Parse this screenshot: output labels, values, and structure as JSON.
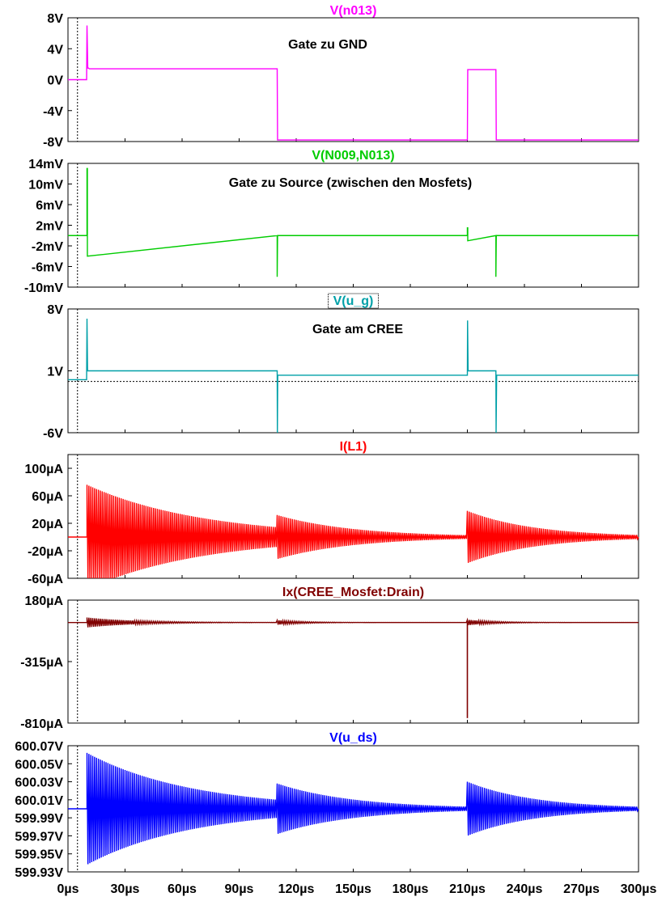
{
  "colors": {
    "magenta": "#ff00ff",
    "green": "#00cc00",
    "cyan": "#00a0a8",
    "red": "#ff0000",
    "darkred": "#800000",
    "blue": "#0000ff",
    "frame": "#000000"
  },
  "x_axis": {
    "label_unit": "µs",
    "range": [
      0,
      300
    ],
    "ticks": [
      "0µs",
      "30µs",
      "60µs",
      "90µs",
      "120µs",
      "150µs",
      "180µs",
      "210µs",
      "240µs",
      "270µs",
      "300µs"
    ],
    "tick_values": [
      0,
      30,
      60,
      90,
      120,
      150,
      180,
      210,
      240,
      270,
      300
    ],
    "cursor_x": 5
  },
  "chart_data": [
    {
      "type": "line",
      "title": "V(n013)",
      "annotation": "Gate zu GND",
      "color_key": "magenta",
      "ylim": [
        -8,
        8
      ],
      "ticks": [
        {
          "v": 8,
          "l": "8V"
        },
        {
          "v": 4,
          "l": "4V"
        },
        {
          "v": 0,
          "l": "0V"
        },
        {
          "v": -4,
          "l": "-4V"
        },
        {
          "v": -8,
          "l": "-8V"
        }
      ],
      "series": [
        {
          "x": [
            0,
            9.8,
            10,
            10.4,
            10.8,
            11.2,
            110,
            110.2,
            210,
            210.2,
            225,
            225.2,
            300
          ],
          "y": [
            0,
            0,
            7,
            1.5,
            1.5,
            1.4,
            1.4,
            -7.8,
            -7.8,
            1.3,
            1.3,
            -7.8,
            -7.8
          ]
        }
      ]
    },
    {
      "type": "line",
      "title": "V(N009,N013)",
      "annotation": "Gate zu Source (zwischen den Mosfets)",
      "color_key": "green",
      "ylim": [
        -10,
        14
      ],
      "ticks": [
        {
          "v": 14,
          "l": "14mV"
        },
        {
          "v": 10,
          "l": "10mV"
        },
        {
          "v": 6,
          "l": "6mV"
        },
        {
          "v": 2,
          "l": "2mV"
        },
        {
          "v": -2,
          "l": "-2mV"
        },
        {
          "v": -6,
          "l": "-6mV"
        },
        {
          "v": -10,
          "l": "-10mV"
        }
      ],
      "series": [
        {
          "x": [
            0,
            10,
            10,
            10.2,
            10.2,
            110,
            110,
            110.2,
            210,
            210,
            210.2,
            210.2,
            225,
            225,
            225.2,
            300
          ],
          "y": [
            0,
            0,
            13,
            13,
            -4,
            0,
            -8,
            0,
            0,
            1.5,
            1.5,
            -1,
            0,
            -8,
            0,
            0
          ]
        }
      ]
    },
    {
      "type": "line",
      "title": "V(u_g)",
      "annotation": "Gate am CREE",
      "color_key": "cyan",
      "ylim": [
        -6,
        8
      ],
      "dashed_level": -0.2,
      "ticks": [
        {
          "v": 8,
          "l": "8V"
        },
        {
          "v": 1,
          "l": "1V"
        },
        {
          "v": -6,
          "l": "-6V"
        }
      ],
      "series": [
        {
          "x": [
            0,
            9.8,
            10,
            10.3,
            11,
            110,
            110.1,
            110.3,
            210,
            210.1,
            210.4,
            225,
            225.1,
            225.4,
            300
          ],
          "y": [
            0,
            0,
            6.9,
            1,
            1,
            1,
            -6,
            0.5,
            0.5,
            6.7,
            1,
            1,
            -6,
            0.5,
            0.5
          ]
        }
      ]
    },
    {
      "type": "line",
      "title": "I(L1)",
      "color_key": "red",
      "ylim": [
        -60,
        120
      ],
      "ticks": [
        {
          "v": 100,
          "l": "100µA"
        },
        {
          "v": 60,
          "l": "60µA"
        },
        {
          "v": 20,
          "l": "20µA"
        },
        {
          "v": -20,
          "l": "-20µA"
        },
        {
          "v": -60,
          "l": "-60µA"
        }
      ],
      "baseline": 0,
      "osc": [
        {
          "start": 10,
          "end": 110,
          "amp": 76,
          "decay": 60
        },
        {
          "start": 110,
          "end": 210,
          "amp": 32,
          "decay": 40
        },
        {
          "start": 210,
          "end": 300,
          "amp": 38,
          "decay": 35
        }
      ]
    },
    {
      "type": "line",
      "title": "Ix(CREE_Mosfet:Drain)",
      "color_key": "darkred",
      "ylim": [
        -810,
        180
      ],
      "ticks": [
        {
          "v": 180,
          "l": "180µA"
        },
        {
          "v": -315,
          "l": "-315µA"
        },
        {
          "v": -810,
          "l": "-810µA"
        }
      ],
      "baseline": 0,
      "spike": {
        "x": 210,
        "y": -770
      },
      "osc": [
        {
          "start": 10,
          "end": 110,
          "amp": 40,
          "decay": 25
        },
        {
          "start": 110,
          "end": 210,
          "amp": 18,
          "decay": 15
        },
        {
          "start": 210,
          "end": 300,
          "amp": 22,
          "decay": 15
        }
      ]
    },
    {
      "type": "line",
      "title": "V(u_ds)",
      "color_key": "blue",
      "ylim": [
        599.93,
        600.07
      ],
      "ticks": [
        {
          "v": 600.07,
          "l": "600.07V"
        },
        {
          "v": 600.05,
          "l": "600.05V"
        },
        {
          "v": 600.03,
          "l": "600.03V"
        },
        {
          "v": 600.01,
          "l": "600.01V"
        },
        {
          "v": 599.99,
          "l": "599.99V"
        },
        {
          "v": 599.97,
          "l": "599.97V"
        },
        {
          "v": 599.95,
          "l": "599.95V"
        },
        {
          "v": 599.93,
          "l": "599.93V"
        }
      ],
      "baseline": 600.0,
      "osc": [
        {
          "start": 10,
          "end": 110,
          "amp": 0.062,
          "decay": 55
        },
        {
          "start": 110,
          "end": 210,
          "amp": 0.028,
          "decay": 40
        },
        {
          "start": 210,
          "end": 300,
          "amp": 0.03,
          "decay": 35
        }
      ]
    }
  ]
}
